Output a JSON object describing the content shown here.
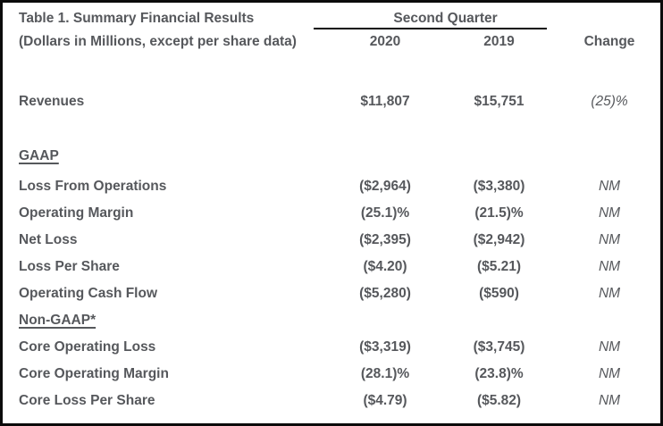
{
  "table": {
    "title": "Table 1. Summary Financial Results",
    "subtitle": "(Dollars in Millions, except per share data)",
    "column_group": "Second Quarter",
    "columns": {
      "c2020": "2020",
      "c2019": "2019",
      "change": "Change"
    },
    "rows": [
      {
        "label": "Revenues",
        "v2020": "$11,807",
        "v2019": "$15,751",
        "change": "(25)%"
      },
      {
        "label": "GAAP"
      },
      {
        "label": "Loss From Operations",
        "v2020": "($2,964)",
        "v2019": "($3,380)",
        "change": "NM"
      },
      {
        "label": "Operating Margin",
        "v2020": "(25.1)%",
        "v2019": "(21.5)%",
        "change": "NM"
      },
      {
        "label": "Net Loss",
        "v2020": "($2,395)",
        "v2019": "($2,942)",
        "change": "NM"
      },
      {
        "label": "Loss Per Share",
        "v2020": "($4.20)",
        "v2019": "($5.21)",
        "change": "NM"
      },
      {
        "label": "Operating Cash Flow",
        "v2020": "($5,280)",
        "v2019": "($590)",
        "change": "NM"
      },
      {
        "label": "Non-GAAP*"
      },
      {
        "label": "Core Operating Loss",
        "v2020": "($3,319)",
        "v2019": "($3,745)",
        "change": "NM"
      },
      {
        "label": "Core Operating Margin",
        "v2020": "(28.1)%",
        "v2019": "(23.8)%",
        "change": "NM"
      },
      {
        "label": "Core Loss Per Share",
        "v2020": "($4.79)",
        "v2019": "($5.82)",
        "change": "NM"
      }
    ],
    "colors": {
      "text": "#56585c",
      "border": "#0b0b0b",
      "background": "#ffffff"
    }
  }
}
